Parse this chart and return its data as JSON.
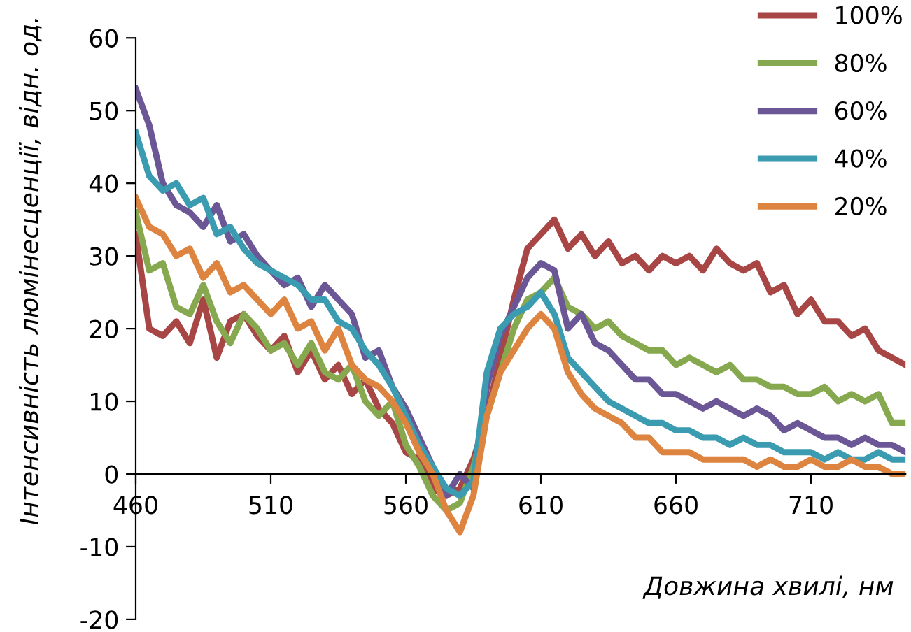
{
  "chart_data": {
    "type": "line",
    "xlabel": "Довжина хвилі, нм",
    "ylabel": "Інтенсивність люмінесценції, відн. од.",
    "x": [
      460,
      465,
      470,
      475,
      480,
      485,
      490,
      495,
      500,
      505,
      510,
      515,
      520,
      525,
      530,
      535,
      540,
      545,
      550,
      555,
      560,
      565,
      570,
      575,
      580,
      585,
      590,
      595,
      600,
      605,
      610,
      615,
      620,
      625,
      630,
      635,
      640,
      645,
      650,
      655,
      660,
      665,
      670,
      675,
      680,
      685,
      690,
      695,
      700,
      705,
      710,
      715,
      720,
      725,
      730,
      735,
      740,
      745
    ],
    "series": [
      {
        "name": "100%",
        "color": "#a84545",
        "values": [
          33,
          20,
          19,
          21,
          18,
          24,
          16,
          21,
          22,
          19,
          17,
          19,
          14,
          17,
          13,
          15,
          11,
          13,
          9,
          7,
          3,
          2,
          -2,
          -3,
          -2,
          2,
          8,
          16,
          24,
          31,
          33,
          35,
          31,
          33,
          30,
          32,
          29,
          30,
          28,
          30,
          29,
          30,
          28,
          31,
          29,
          28,
          29,
          25,
          26,
          22,
          24,
          21,
          21,
          19,
          20,
          17,
          16,
          15
        ]
      },
      {
        "name": "80%",
        "color": "#86a84f",
        "values": [
          36,
          28,
          29,
          23,
          22,
          26,
          21,
          18,
          22,
          20,
          17,
          18,
          15,
          18,
          14,
          13,
          15,
          10,
          8,
          10,
          4,
          1,
          -3,
          -5,
          -4,
          1,
          8,
          14,
          20,
          24,
          25,
          27,
          23,
          22,
          20,
          21,
          19,
          18,
          17,
          17,
          15,
          16,
          15,
          14,
          15,
          13,
          13,
          12,
          12,
          11,
          11,
          12,
          10,
          11,
          10,
          11,
          7,
          7
        ]
      },
      {
        "name": "60%",
        "color": "#6b5696",
        "values": [
          53,
          48,
          40,
          37,
          36,
          34,
          37,
          32,
          33,
          30,
          28,
          26,
          27,
          23,
          26,
          24,
          22,
          16,
          17,
          12,
          9,
          5,
          1,
          -3,
          0,
          -2,
          12,
          19,
          23,
          27,
          29,
          28,
          20,
          22,
          18,
          17,
          15,
          13,
          13,
          11,
          11,
          10,
          9,
          10,
          9,
          8,
          9,
          8,
          6,
          7,
          6,
          5,
          5,
          4,
          5,
          4,
          4,
          3
        ]
      },
      {
        "name": "40%",
        "color": "#3b9bb0",
        "values": [
          47,
          41,
          39,
          40,
          37,
          38,
          33,
          34,
          31,
          29,
          28,
          27,
          26,
          24,
          24,
          21,
          20,
          17,
          15,
          12,
          8,
          4,
          1,
          -2,
          -3,
          -1,
          14,
          20,
          22,
          23,
          25,
          22,
          16,
          14,
          12,
          10,
          9,
          8,
          7,
          7,
          6,
          6,
          5,
          5,
          4,
          5,
          4,
          4,
          3,
          3,
          3,
          2,
          3,
          2,
          2,
          3,
          2,
          2
        ]
      },
      {
        "name": "20%",
        "color": "#dd8440",
        "values": [
          38,
          34,
          33,
          30,
          31,
          27,
          29,
          25,
          26,
          24,
          22,
          24,
          20,
          21,
          17,
          20,
          15,
          13,
          12,
          10,
          7,
          3,
          0,
          -5,
          -8,
          -3,
          8,
          14,
          17,
          20,
          22,
          20,
          14,
          11,
          9,
          8,
          7,
          5,
          5,
          3,
          3,
          3,
          2,
          2,
          2,
          2,
          1,
          2,
          1,
          1,
          2,
          1,
          1,
          2,
          1,
          1,
          0,
          0
        ]
      }
    ],
    "xlim": [
      460,
      745
    ],
    "xticks": [
      460,
      510,
      560,
      610,
      660,
      710
    ],
    "ylim": [
      -20,
      60
    ],
    "yticks": [
      -20,
      -10,
      0,
      10,
      20,
      30,
      40,
      50,
      60
    ],
    "grid": false,
    "legend": "top right"
  }
}
